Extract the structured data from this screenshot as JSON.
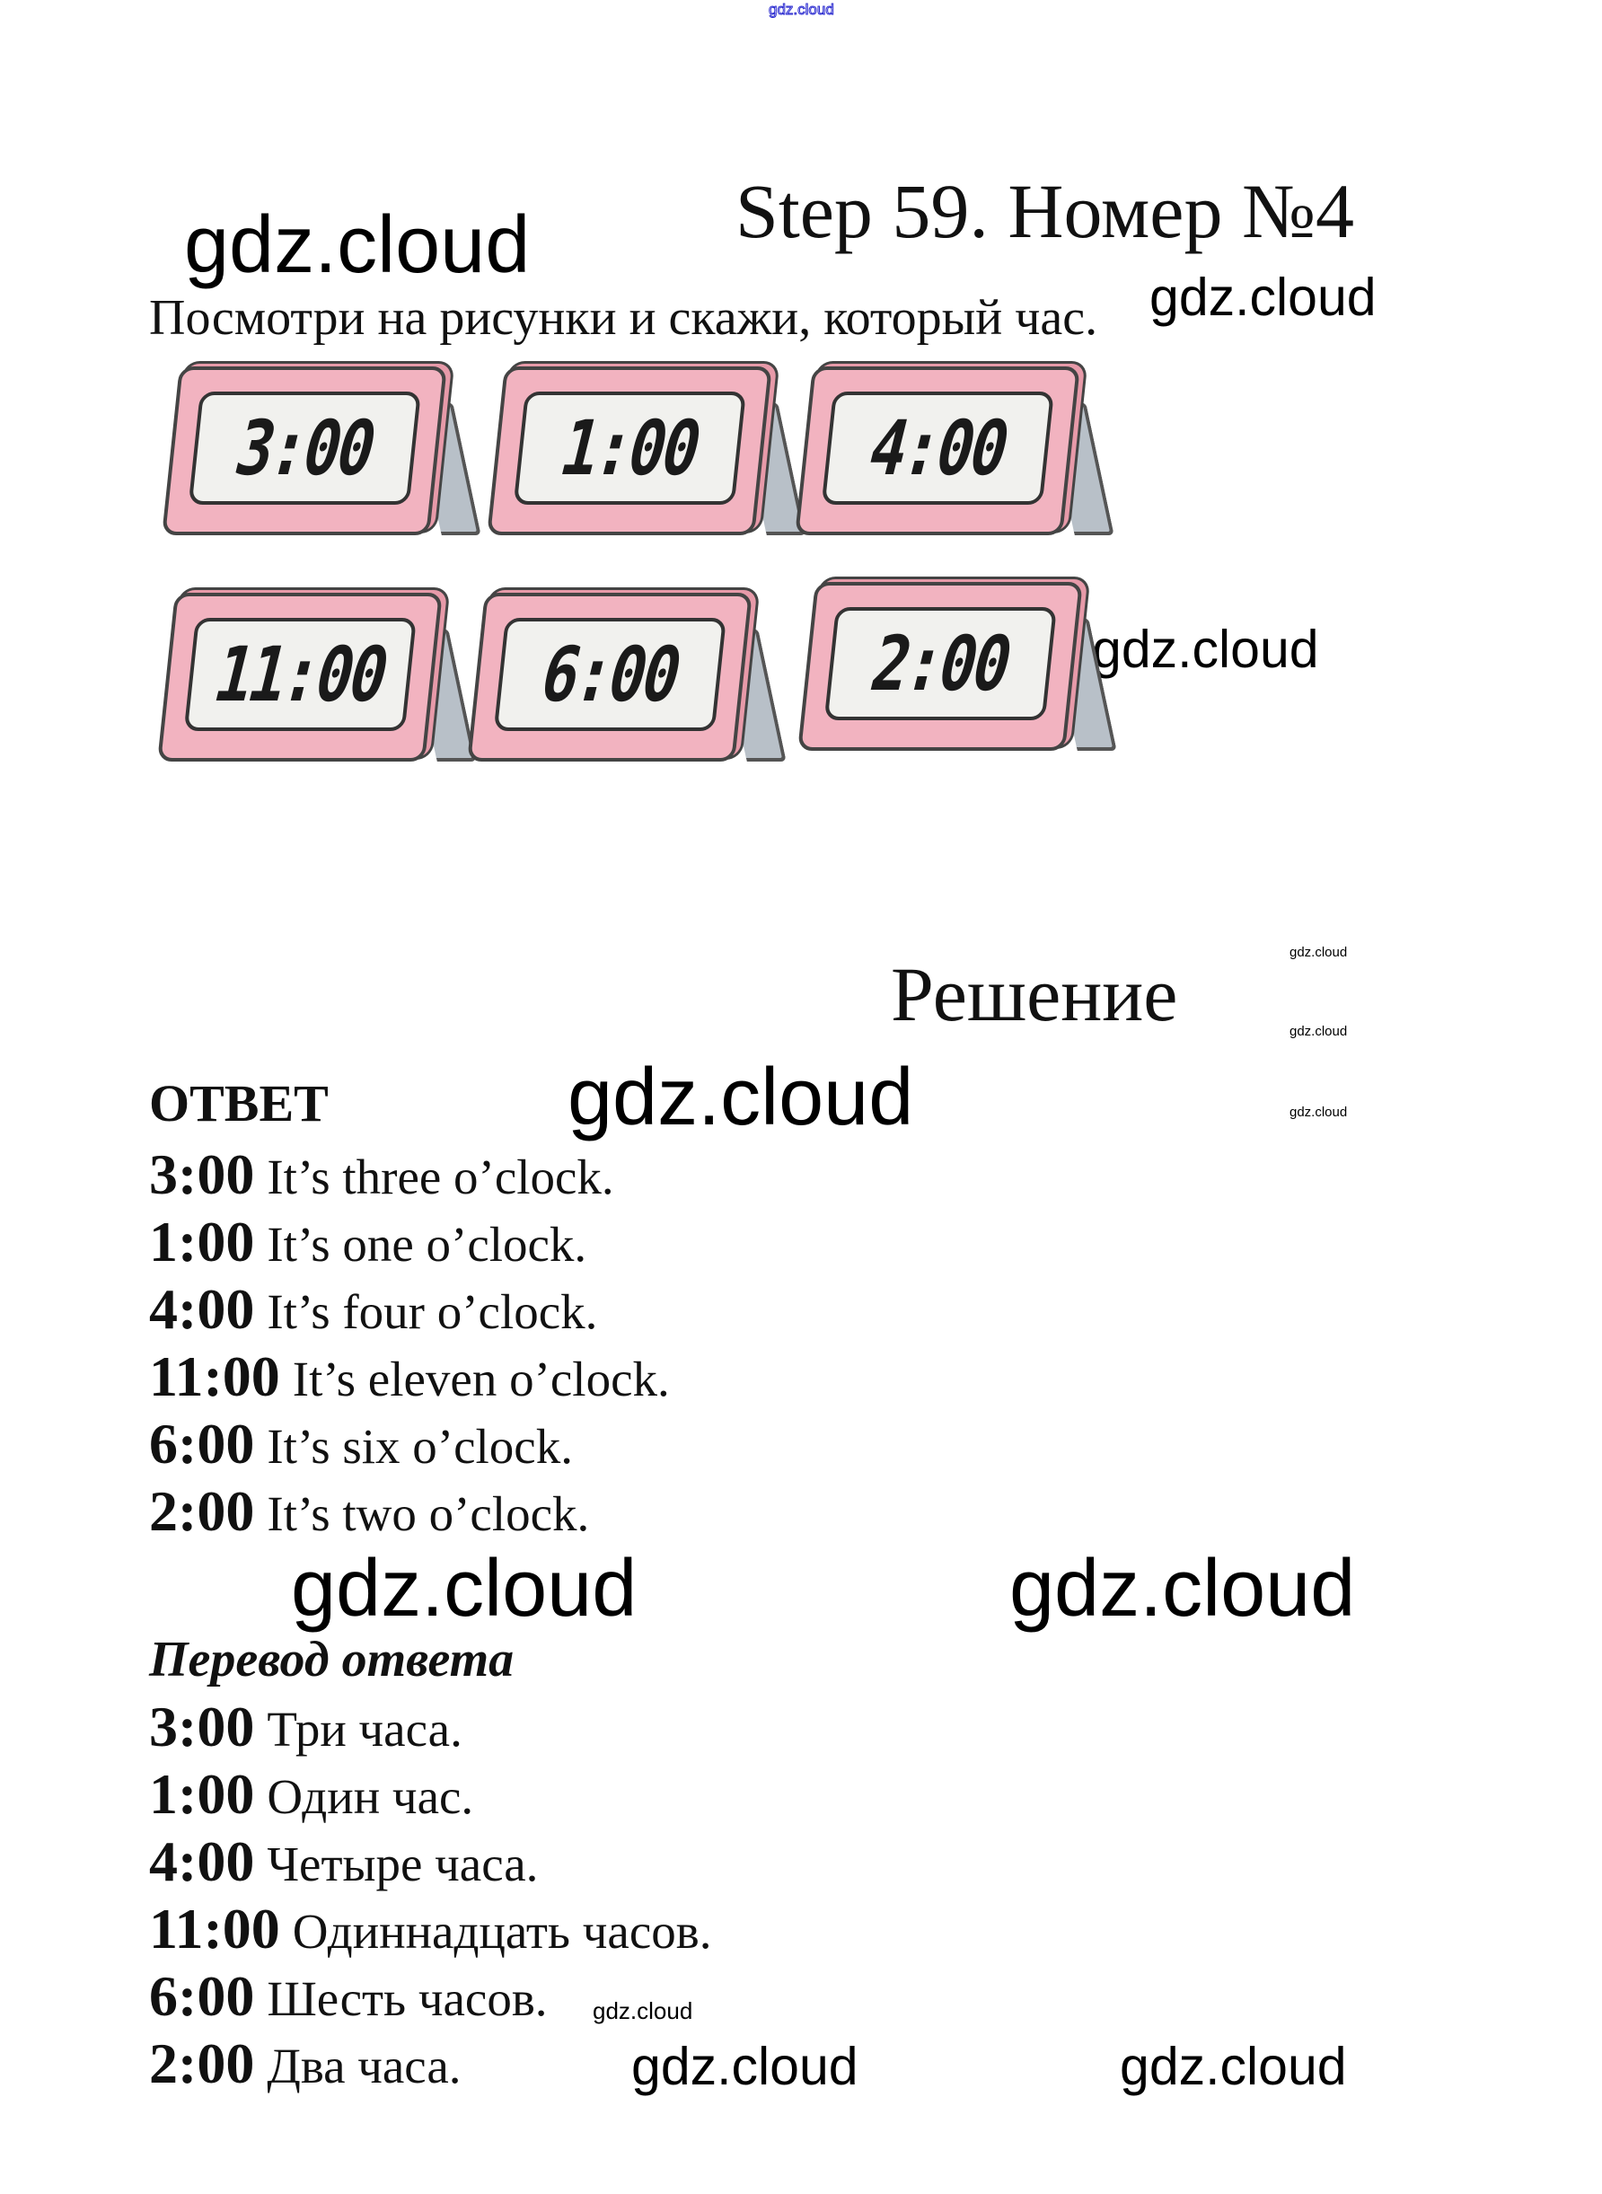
{
  "watermark": "gdz.cloud",
  "title": "Step 59. Номер №4",
  "instruction": "Посмотри на рисунки и скажи, который час.",
  "clocks": [
    "3:00",
    "1:00",
    "4:00",
    "11:00",
    "6:00",
    "2:00"
  ],
  "solution_heading": "Решение",
  "answer_heading": "ОТВЕТ",
  "answers": [
    {
      "time": "3:00",
      "text": "It’s three o’clock."
    },
    {
      "time": "1:00",
      "text": "It’s one o’clock."
    },
    {
      "time": "4:00",
      "text": "It’s four o’clock."
    },
    {
      "time": "11:00",
      "text": "It’s eleven o’clock."
    },
    {
      "time": "6:00",
      "text": "It’s six o’clock."
    },
    {
      "time": "2:00",
      "text": "It’s two o’clock."
    }
  ],
  "translation_heading": "Перевод ответа",
  "translations": [
    {
      "time": "3:00",
      "text": "Три часа."
    },
    {
      "time": "1:00",
      "text": "Один час."
    },
    {
      "time": "4:00",
      "text": "Четыре часа."
    },
    {
      "time": "11:00",
      "text": "Одиннадцать часов."
    },
    {
      "time": "6:00",
      "text": "Шесть часов."
    },
    {
      "time": "2:00",
      "text": "Два часа."
    }
  ],
  "colors": {
    "clock_body": "#f2b3c0",
    "clock_stand": "#b8c0c8",
    "top_watermark": "#2b2bd0"
  }
}
